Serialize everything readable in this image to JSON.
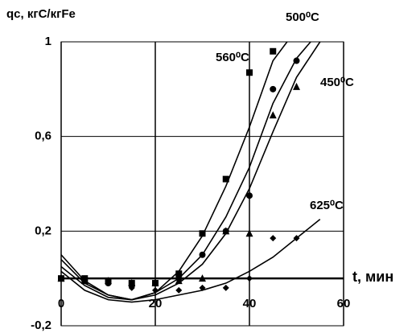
{
  "chart_data": {
    "type": "scatter",
    "ylabel": "qc, кгС/кгFe",
    "xlabel": "t, мин",
    "xlim": [
      0,
      60
    ],
    "xticks": [
      0,
      20,
      40,
      60
    ],
    "ylim": [
      -0.2,
      1
    ],
    "yticks": [
      {
        "value": -0.2,
        "label": "-0,2"
      },
      {
        "value": 0.2,
        "label": "0,2"
      },
      {
        "value": 0.6,
        "label": "0,6"
      },
      {
        "value": 1,
        "label": "1"
      }
    ],
    "grid": true,
    "color": "#000000",
    "annotations": [
      "560⁰C",
      "500⁰C",
      "450⁰C",
      "625⁰C"
    ],
    "series": [
      {
        "marker": "square",
        "x": [
          0,
          5,
          10,
          15,
          20,
          25,
          30,
          35,
          40,
          45
        ],
        "values": [
          0,
          0,
          -0.01,
          -0.02,
          -0.02,
          0.02,
          0.19,
          0.42,
          0.87,
          0.96
        ]
      },
      {
        "marker": "circle",
        "x": [
          0,
          5,
          10,
          15,
          20,
          25,
          30,
          35,
          40,
          45,
          50
        ],
        "values": [
          0,
          -0.01,
          -0.02,
          -0.03,
          -0.02,
          0,
          0.1,
          0.2,
          0.35,
          0.8,
          0.92
        ]
      },
      {
        "marker": "triangle",
        "x": [
          0,
          5,
          10,
          15,
          20,
          25,
          30,
          35,
          40,
          45,
          50
        ],
        "values": [
          0,
          -0.01,
          -0.01,
          -0.02,
          -0.02,
          -0.01,
          0,
          0.2,
          0.19,
          0.69,
          0.81
        ]
      },
      {
        "marker": "diamond",
        "x": [
          0,
          5,
          10,
          15,
          20,
          25,
          30,
          35,
          40,
          45,
          50
        ],
        "values": [
          0,
          -0.01,
          -0.02,
          -0.04,
          -0.05,
          -0.05,
          -0.04,
          -0.04,
          0,
          0.17,
          0.17
        ]
      }
    ],
    "lines": [
      {
        "x": [
          0,
          5,
          10,
          15,
          20,
          25,
          30,
          35,
          40,
          45,
          48
        ],
        "values": [
          0.05,
          -0.03,
          -0.08,
          -0.09,
          -0.06,
          0.03,
          0.18,
          0.39,
          0.64,
          0.92,
          1
        ]
      },
      {
        "x": [
          0,
          5,
          10,
          15,
          20,
          25,
          30,
          35,
          40,
          45,
          50,
          53
        ],
        "values": [
          0.08,
          -0.02,
          -0.07,
          -0.09,
          -0.06,
          0,
          0.1,
          0.26,
          0.47,
          0.74,
          0.93,
          1
        ]
      },
      {
        "x": [
          0,
          5,
          10,
          15,
          20,
          25,
          30,
          35,
          40,
          45,
          50,
          55
        ],
        "values": [
          0.1,
          -0.01,
          -0.07,
          -0.09,
          -0.07,
          -0.02,
          0.06,
          0.19,
          0.38,
          0.62,
          0.85,
          1
        ]
      },
      {
        "x": [
          0,
          5,
          10,
          15,
          20,
          25,
          30,
          35,
          40,
          45,
          50,
          55
        ],
        "values": [
          0.03,
          -0.05,
          -0.09,
          -0.1,
          -0.09,
          -0.07,
          -0.05,
          -0.02,
          0.03,
          0.09,
          0.17,
          0.25
        ]
      }
    ]
  }
}
